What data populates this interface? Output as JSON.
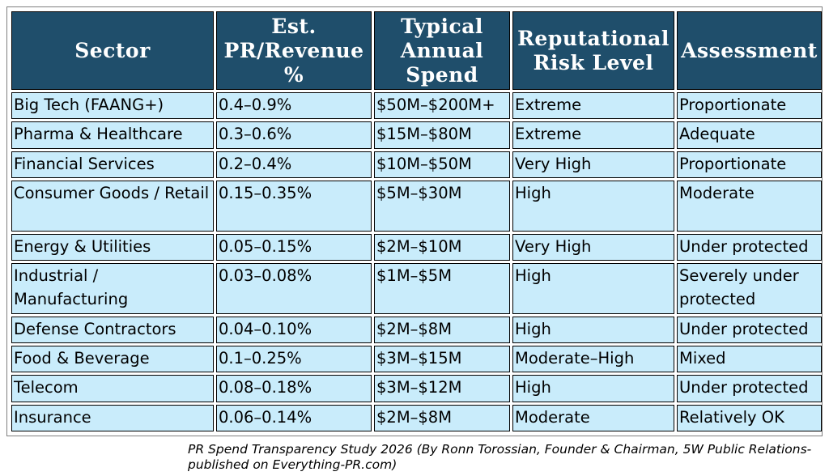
{
  "table": {
    "headers": [
      "Sector",
      "Est. PR/Revenue %",
      "Typical Annual Spend",
      "Reputational Risk Level",
      "Assessment"
    ],
    "rows": [
      [
        "Big Tech (FAANG+)",
        "0.4–0.9%",
        "$50M–$200M+",
        "Extreme",
        "Proportionate"
      ],
      [
        "Pharma & Healthcare",
        "0.3–0.6%",
        "$15M–$80M",
        "Extreme",
        "Adequate"
      ],
      [
        "Financial Services",
        "0.2–0.4%",
        "$10M–$50M",
        "Very High",
        "Proportionate"
      ],
      [
        "Consumer Goods / Retail",
        "0.15–0.35%",
        "$5M–$30M",
        "High",
        "Moderate"
      ],
      [
        "Energy & Utilities",
        "0.05–0.15%",
        "$2M–$10M",
        "Very High",
        "Under protected"
      ],
      [
        "Industrial / Manufacturing",
        "0.03–0.08%",
        "$1M–$5M",
        "High",
        "Severely under protected"
      ],
      [
        "Defense Contractors",
        "0.04–0.10%",
        "$2M–$8M",
        "High",
        "Under protected"
      ],
      [
        "Food & Beverage",
        "0.1–0.25%",
        "$3M–$15M",
        "Moderate–High",
        "Mixed"
      ],
      [
        "Telecom",
        "0.08–0.18%",
        "$3M–$12M",
        "High",
        "Under protected"
      ],
      [
        "Insurance",
        "0.06–0.14%",
        "$2M–$8M",
        "Moderate",
        "Relatively OK"
      ]
    ]
  },
  "caption": "PR Spend Transparency Study 2026 (By Ronn Torossian, Founder & Chairman, 5W Public Relations-published on Everything-PR.com)"
}
